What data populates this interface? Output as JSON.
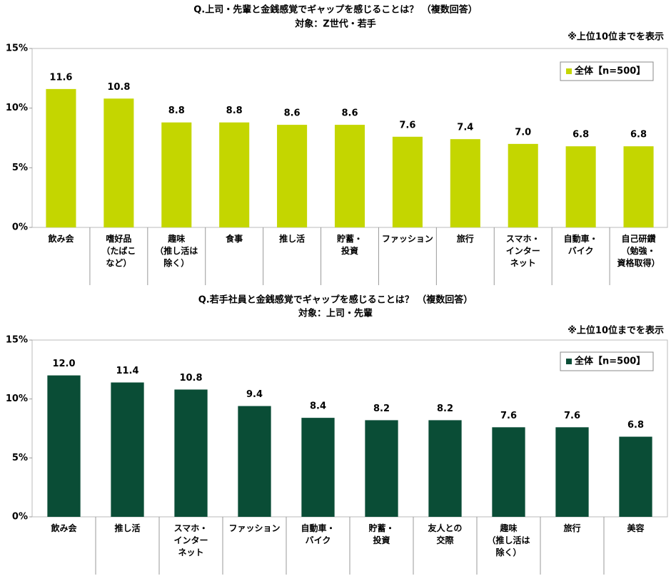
{
  "chart_data": [
    {
      "type": "bar",
      "title": "Q.上司・先輩と金銭感覚でギャップを感じることは？ （複数回答）",
      "subtitle": "対象：Z世代・若手",
      "annotation": "※上位10位までを表示",
      "categories": [
        "飲み会",
        "嗜好品\n（たばこ\nなど）",
        "趣味\n（推し活は\n除く）",
        "食事",
        "推し活",
        "貯蓄・\n投資",
        "ファッション",
        "旅行",
        "スマホ・\nインター\nネット",
        "自動車・\nバイク",
        "自己研鑽\n（勉強・\n資格取得）"
      ],
      "series": [
        {
          "name": "全体【n=500】",
          "color": "#c4d600",
          "values": [
            11.6,
            10.8,
            8.8,
            8.8,
            8.6,
            8.6,
            7.6,
            7.4,
            7.0,
            6.8,
            6.8
          ],
          "value_labels": [
            "11.6",
            "10.8",
            "8.8",
            "8.8",
            "8.6",
            "8.6",
            "7.6",
            "7.4",
            "7.0",
            "6.8",
            "6.8"
          ]
        }
      ],
      "ylim": [
        0,
        15
      ],
      "yticks": [
        {
          "value": 0,
          "label": "0%"
        },
        {
          "value": 5,
          "label": "5%"
        },
        {
          "value": 10,
          "label": "10%"
        },
        {
          "value": 15,
          "label": "15%"
        }
      ],
      "grid": false,
      "legend": "top-right"
    },
    {
      "type": "bar",
      "title": "Q.若手社員と金銭感覚でギャップを感じることは？ （複数回答）",
      "subtitle": "対象：上司・先輩",
      "annotation": "※上位10位までを表示",
      "categories": [
        "飲み会",
        "推し活",
        "スマホ・\nインター\nネット",
        "ファッション",
        "自動車・\nバイク",
        "貯蓄・\n投資",
        "友人との\n交際",
        "趣味\n（推し活は\n除く）",
        "旅行",
        "美容"
      ],
      "series": [
        {
          "name": "全体【n=500】",
          "color": "#0a4d36",
          "values": [
            12.0,
            11.4,
            10.8,
            9.4,
            8.4,
            8.2,
            8.2,
            7.6,
            7.6,
            6.8
          ],
          "value_labels": [
            "12.0",
            "11.4",
            "10.8",
            "9.4",
            "8.4",
            "8.2",
            "8.2",
            "7.6",
            "7.6",
            "6.8"
          ]
        }
      ],
      "ylim": [
        0,
        15
      ],
      "yticks": [
        {
          "value": 0,
          "label": "0%"
        },
        {
          "value": 5,
          "label": "5%"
        },
        {
          "value": 10,
          "label": "10%"
        },
        {
          "value": 15,
          "label": "15%"
        }
      ],
      "grid": false,
      "legend": "top-right"
    }
  ]
}
